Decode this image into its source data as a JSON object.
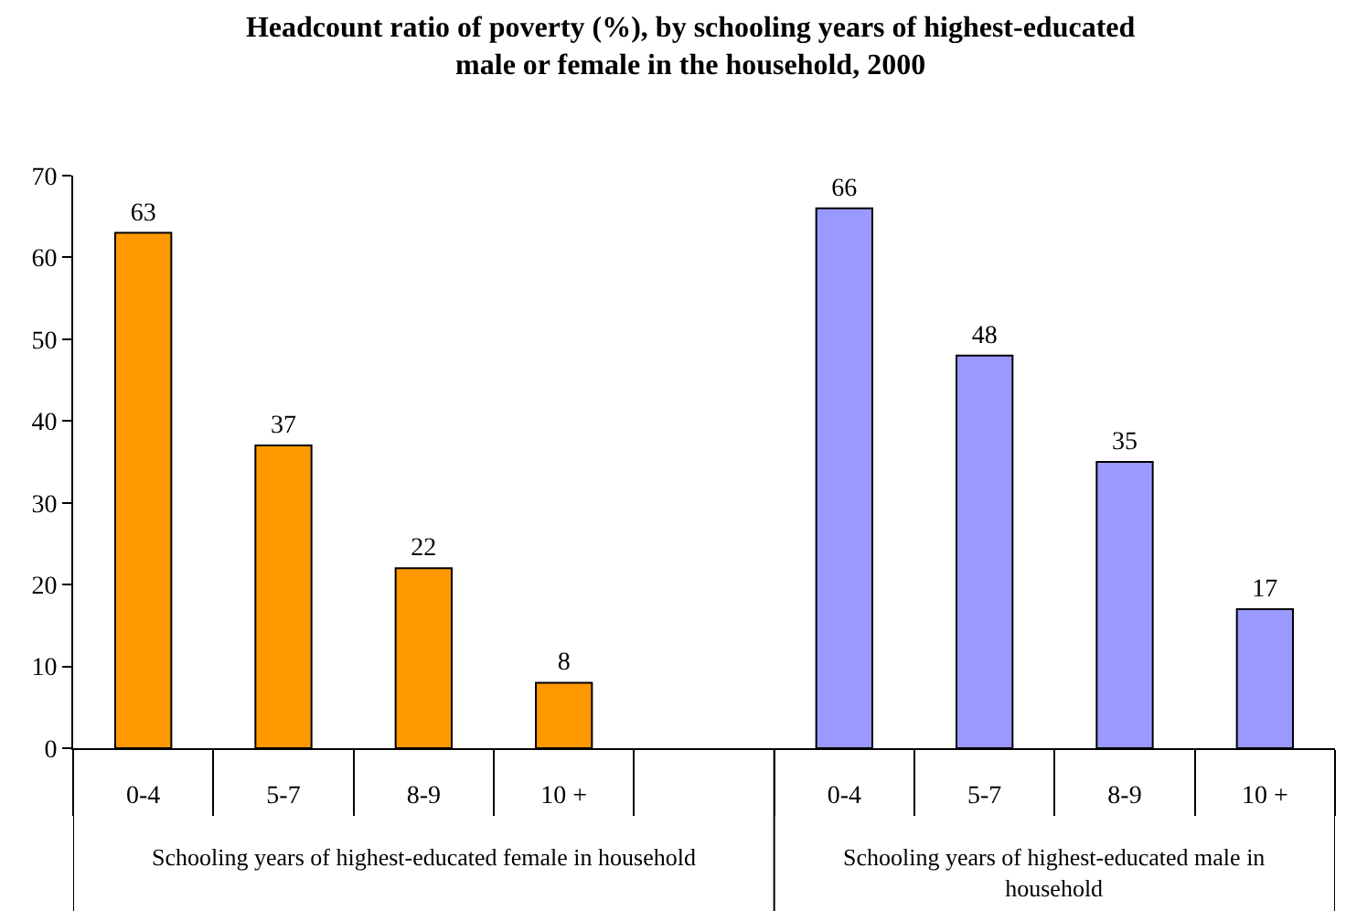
{
  "chart_data": {
    "type": "bar",
    "title": "Headcount ratio of poverty (%), by schooling years of highest-educated male or female in the household, 2000",
    "categories": [
      "0-4",
      "5-7",
      "8-9",
      "10 +",
      null,
      "0-4",
      "5-7",
      "8-9",
      "10 +"
    ],
    "values": [
      63,
      37,
      22,
      8,
      null,
      66,
      48,
      35,
      17
    ],
    "colors": [
      "#ff9900",
      "#ff9900",
      "#ff9900",
      "#ff9900",
      "#ff9900",
      "#9999ff",
      "#9999ff",
      "#9999ff",
      "#9999ff"
    ],
    "data_labels": true,
    "ylim": [
      0,
      70
    ],
    "yticks": [
      0,
      10,
      20,
      30,
      40,
      50,
      60,
      70
    ],
    "annotations": [
      "Schooling years of highest-educated female in household",
      "Schooling years of highest-educated male in household"
    ]
  }
}
